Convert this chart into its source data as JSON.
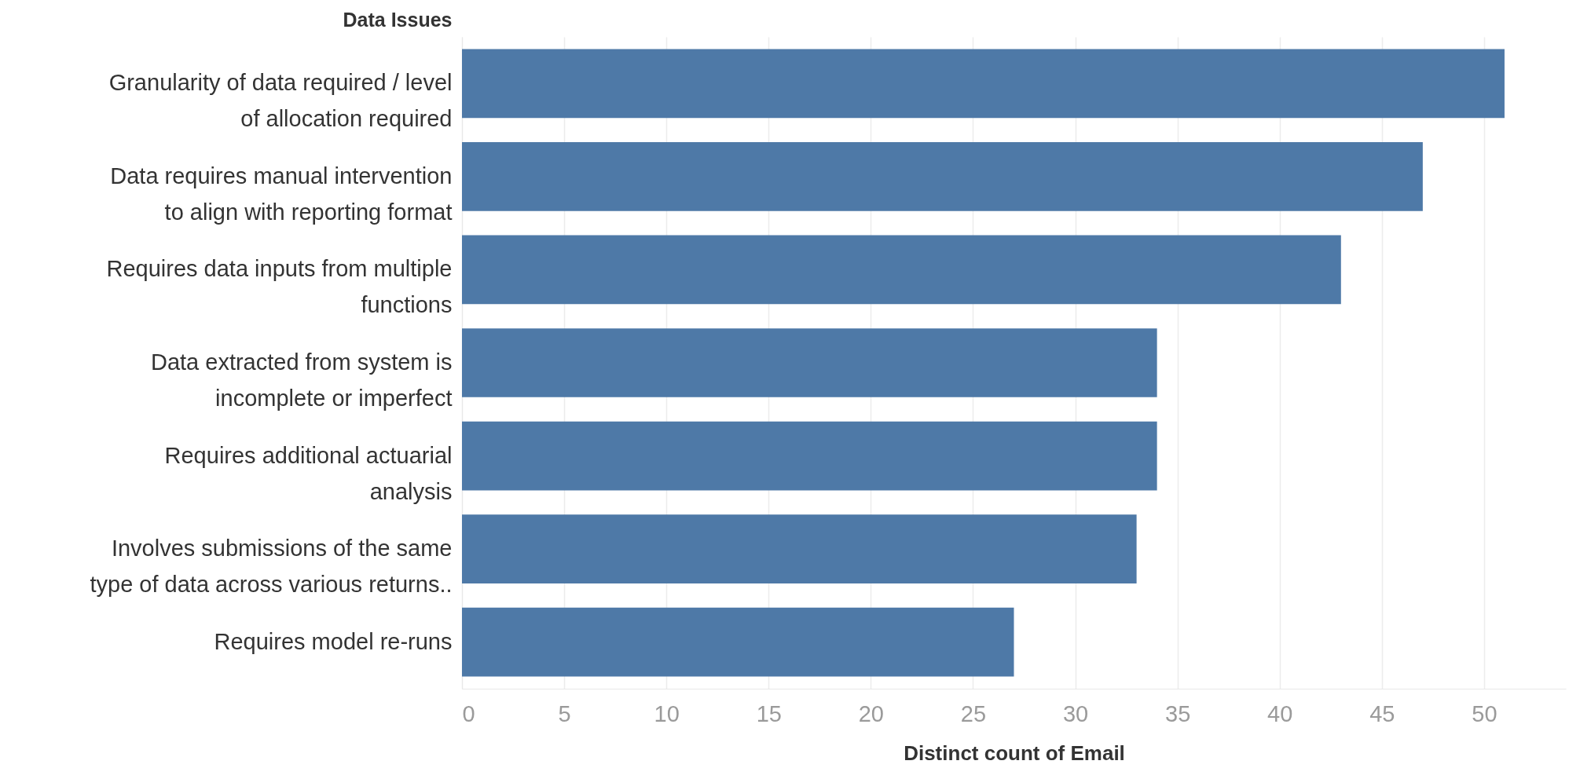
{
  "chart_data": {
    "type": "bar",
    "orientation": "horizontal",
    "ylabel": "Data Issues",
    "xlabel": "Distinct count of Email",
    "categories": [
      "Granularity of data required / level\nof allocation required",
      "Data requires manual intervention\nto align with reporting format",
      "Requires data inputs from multiple\nfunctions",
      "Data extracted from system is\nincomplete or imperfect",
      "Requires additional actuarial\nanalysis",
      "Involves submissions of the same\ntype of data across various returns..",
      "Requires model re-runs"
    ],
    "values": [
      51,
      47,
      43,
      34,
      34,
      33,
      27
    ],
    "color": "#4e79a7",
    "xlim": [
      0,
      54
    ],
    "xticks": [
      0,
      5,
      10,
      15,
      20,
      25,
      30,
      35,
      40,
      45,
      50
    ],
    "grid": "x"
  }
}
